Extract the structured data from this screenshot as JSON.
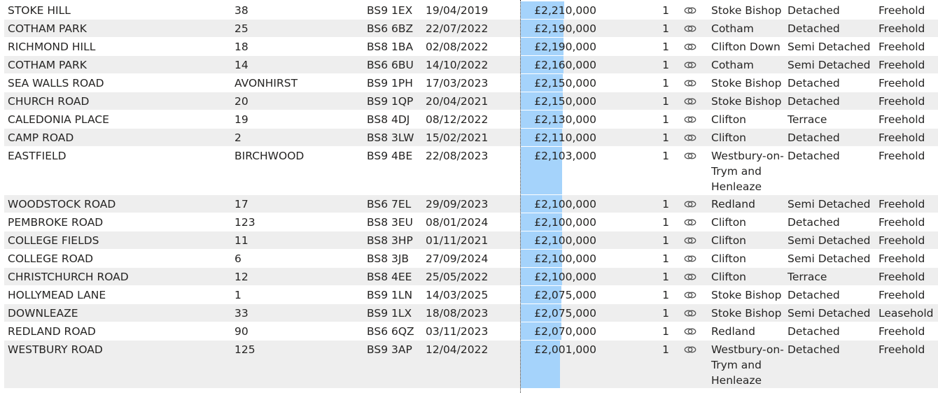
{
  "table": {
    "rows": [
      {
        "street": "STOKE HILL",
        "number": "38",
        "postcode": "BS9 1EX",
        "date": "19/04/2019",
        "price": "£2,210,000",
        "price_value": 2210000,
        "count": "1",
        "area": "Stoke Bishop",
        "type": "Detached",
        "tenure": "Freehold"
      },
      {
        "street": "COTHAM PARK",
        "number": "25",
        "postcode": "BS6 6BZ",
        "date": "22/07/2022",
        "price": "£2,190,000",
        "price_value": 2190000,
        "count": "1",
        "area": "Cotham",
        "type": "Detached",
        "tenure": "Freehold"
      },
      {
        "street": "RICHMOND HILL",
        "number": "18",
        "postcode": "BS8 1BA",
        "date": "02/08/2022",
        "price": "£2,190,000",
        "price_value": 2190000,
        "count": "1",
        "area": "Clifton Down",
        "type": "Semi Detached",
        "tenure": "Freehold"
      },
      {
        "street": "COTHAM PARK",
        "number": "14",
        "postcode": "BS6 6BU",
        "date": "14/10/2022",
        "price": "£2,160,000",
        "price_value": 2160000,
        "count": "1",
        "area": "Cotham",
        "type": "Semi Detached",
        "tenure": "Freehold"
      },
      {
        "street": "SEA WALLS ROAD",
        "number": "AVONHIRST",
        "postcode": "BS9 1PH",
        "date": "17/03/2023",
        "price": "£2,150,000",
        "price_value": 2150000,
        "count": "1",
        "area": "Stoke Bishop",
        "type": "Detached",
        "tenure": "Freehold"
      },
      {
        "street": "CHURCH ROAD",
        "number": "20",
        "postcode": "BS9 1QP",
        "date": "20/04/2021",
        "price": "£2,150,000",
        "price_value": 2150000,
        "count": "1",
        "area": "Stoke Bishop",
        "type": "Detached",
        "tenure": "Freehold"
      },
      {
        "street": "CALEDONIA PLACE",
        "number": "19",
        "postcode": "BS8 4DJ",
        "date": "08/12/2022",
        "price": "£2,130,000",
        "price_value": 2130000,
        "count": "1",
        "area": "Clifton",
        "type": "Terrace",
        "tenure": "Freehold"
      },
      {
        "street": "CAMP ROAD",
        "number": "2",
        "postcode": "BS8 3LW",
        "date": "15/02/2021",
        "price": "£2,110,000",
        "price_value": 2110000,
        "count": "1",
        "area": "Clifton",
        "type": "Detached",
        "tenure": "Freehold"
      },
      {
        "street": "EASTFIELD",
        "number": "BIRCHWOOD",
        "postcode": "BS9 4BE",
        "date": "22/08/2023",
        "price": "£2,103,000",
        "price_value": 2103000,
        "count": "1",
        "area": "Westbury-on-Trym and Henleaze",
        "type": "Detached",
        "tenure": "Freehold"
      },
      {
        "street": "WOODSTOCK ROAD",
        "number": "17",
        "postcode": "BS6 7EL",
        "date": "29/09/2023",
        "price": "£2,100,000",
        "price_value": 2100000,
        "count": "1",
        "area": "Redland",
        "type": "Semi Detached",
        "tenure": "Freehold"
      },
      {
        "street": "PEMBROKE ROAD",
        "number": "123",
        "postcode": "BS8 3EU",
        "date": "08/01/2024",
        "price": "£2,100,000",
        "price_value": 2100000,
        "count": "1",
        "area": "Clifton",
        "type": "Detached",
        "tenure": "Freehold"
      },
      {
        "street": "COLLEGE FIELDS",
        "number": "11",
        "postcode": "BS8 3HP",
        "date": "01/11/2021",
        "price": "£2,100,000",
        "price_value": 2100000,
        "count": "1",
        "area": "Clifton",
        "type": "Semi Detached",
        "tenure": "Freehold"
      },
      {
        "street": "COLLEGE ROAD",
        "number": "6",
        "postcode": "BS8 3JB",
        "date": "27/09/2024",
        "price": "£2,100,000",
        "price_value": 2100000,
        "count": "1",
        "area": "Clifton",
        "type": "Semi Detached",
        "tenure": "Freehold"
      },
      {
        "street": "CHRISTCHURCH ROAD",
        "number": "12",
        "postcode": "BS8 4EE",
        "date": "25/05/2022",
        "price": "£2,100,000",
        "price_value": 2100000,
        "count": "1",
        "area": "Clifton",
        "type": "Terrace",
        "tenure": "Freehold"
      },
      {
        "street": "HOLLYMEAD LANE",
        "number": "1",
        "postcode": "BS9 1LN",
        "date": "14/03/2025",
        "price": "£2,075,000",
        "price_value": 2075000,
        "count": "1",
        "area": "Stoke Bishop",
        "type": "Detached",
        "tenure": "Freehold"
      },
      {
        "street": "DOWNLEAZE",
        "number": "33",
        "postcode": "BS9 1LX",
        "date": "18/08/2023",
        "price": "£2,075,000",
        "price_value": 2075000,
        "count": "1",
        "area": "Stoke Bishop",
        "type": "Semi Detached",
        "tenure": "Leasehold"
      },
      {
        "street": "REDLAND ROAD",
        "number": "90",
        "postcode": "BS6 6QZ",
        "date": "03/11/2023",
        "price": "£2,070,000",
        "price_value": 2070000,
        "count": "1",
        "area": "Redland",
        "type": "Detached",
        "tenure": "Freehold"
      },
      {
        "street": "WESTBURY ROAD",
        "number": "125",
        "postcode": "BS9 3AP",
        "date": "12/04/2022",
        "price": "£2,001,000",
        "price_value": 2001000,
        "count": "1",
        "area": "Westbury-on-Trym and Henleaze",
        "type": "Detached",
        "tenure": "Freehold"
      }
    ],
    "link_icon": "link-icon",
    "colors": {
      "bar": "#a5d3fb",
      "stripe": "#eeeeee",
      "text": "#252423"
    }
  }
}
